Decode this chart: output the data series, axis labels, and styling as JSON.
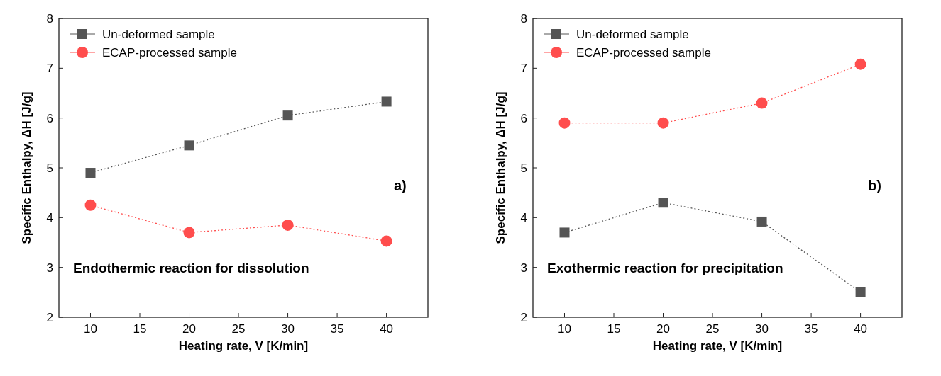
{
  "chart_data": [
    {
      "type": "line",
      "xlabel": "Heating rate, V [K/min]",
      "ylabel": "Specific Enthalpy, ΔH [J/g]",
      "x": [
        10,
        20,
        30,
        40
      ],
      "xlim": [
        6.8,
        44.2
      ],
      "xticks": [
        10,
        15,
        20,
        25,
        30,
        35,
        40
      ],
      "ylim": [
        2,
        8
      ],
      "yticks": [
        2,
        3,
        4,
        5,
        6,
        7,
        8
      ],
      "legend": "top left",
      "grid": false,
      "line_style": "dotted",
      "annotations": [
        "Endothermic reaction for dissolution",
        "a)"
      ],
      "series": [
        {
          "name": "Un-deformed sample",
          "color": "#555555",
          "marker": "square",
          "values": [
            4.9,
            5.45,
            6.05,
            6.33
          ]
        },
        {
          "name": "ECAP-processed sample",
          "color": "#ff4d4d",
          "marker": "circle",
          "values": [
            4.25,
            3.7,
            3.85,
            3.53
          ]
        }
      ]
    },
    {
      "type": "line",
      "xlabel": "Heating rate, V [K/min]",
      "ylabel": "Specific Enthalpy, ΔH [J/g]",
      "x": [
        10,
        20,
        30,
        40
      ],
      "xlim": [
        6.8,
        44.2
      ],
      "xticks": [
        10,
        15,
        20,
        25,
        30,
        35,
        40
      ],
      "ylim": [
        2,
        8
      ],
      "yticks": [
        2,
        3,
        4,
        5,
        6,
        7,
        8
      ],
      "legend": "top left",
      "grid": false,
      "line_style": "dotted",
      "annotations": [
        "Exothermic reaction for precipitation",
        "b)"
      ],
      "series": [
        {
          "name": "Un-deformed sample",
          "color": "#555555",
          "marker": "square",
          "values": [
            3.7,
            4.3,
            3.92,
            2.5
          ]
        },
        {
          "name": "ECAP-processed sample",
          "color": "#ff4d4d",
          "marker": "circle",
          "values": [
            5.9,
            5.9,
            6.3,
            7.08
          ]
        }
      ]
    }
  ]
}
